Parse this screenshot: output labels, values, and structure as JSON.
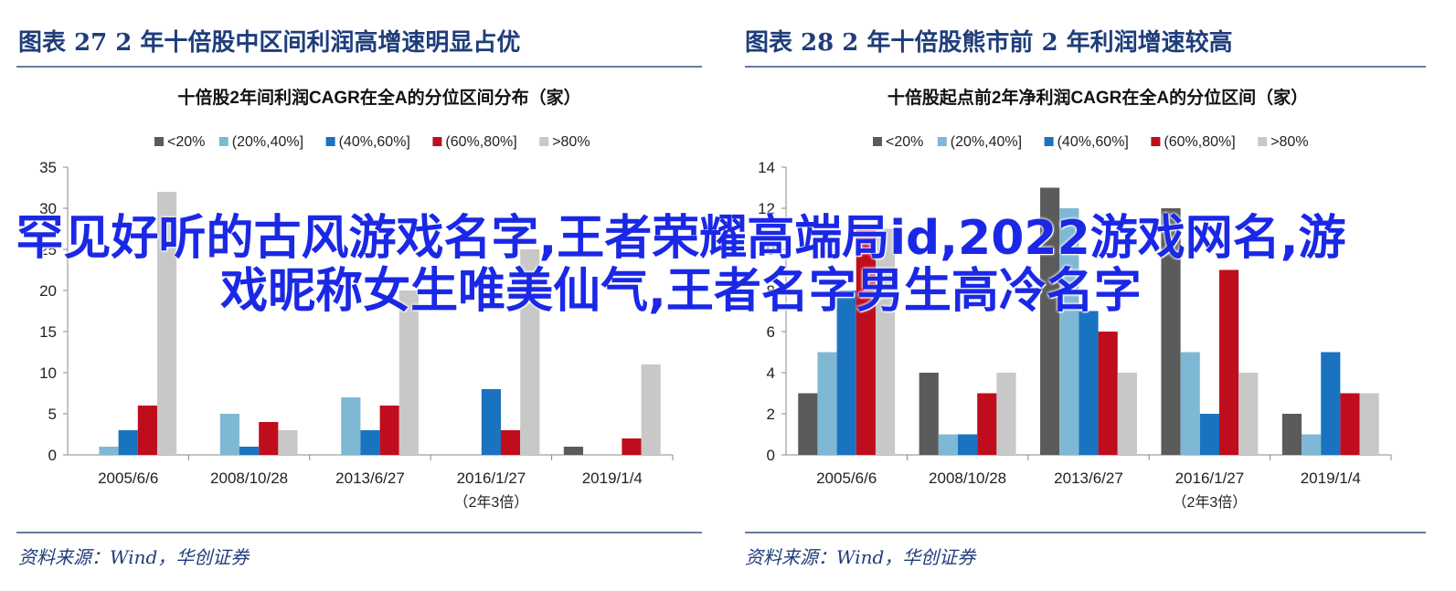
{
  "figures": [
    {
      "figure_title": "图表  27    2 年十倍股中区间利润高增速明显占优",
      "source": "资料来源：Wind，华创证券",
      "chart_data": {
        "type": "bar",
        "title": "十倍股2年间利润CAGR在全A的分位区间分布（家）",
        "xlabel": "",
        "ylabel": "",
        "ylim": [
          0,
          35
        ],
        "yticks": [
          0,
          5,
          10,
          15,
          20,
          25,
          30,
          35
        ],
        "categories": [
          "2005/6/6",
          "2008/10/28",
          "2013/6/27",
          "2016/1/27",
          "2019/1/4"
        ],
        "category_note": {
          "index": 3,
          "text": "（2年3倍）"
        },
        "legend_position": "top",
        "grid": false,
        "series": [
          {
            "name": "<20%",
            "color": "#5b5b5b",
            "values": [
              0,
              0,
              0,
              0,
              1
            ]
          },
          {
            "name": "(20%,40%]",
            "color": "#7fb8d4",
            "values": [
              1,
              5,
              7,
              0,
              0
            ]
          },
          {
            "name": "(40%,60%]",
            "color": "#1a73c0",
            "values": [
              3,
              1,
              3,
              8,
              0
            ]
          },
          {
            "name": "(60%,80%]",
            "color": "#c00d1e",
            "values": [
              6,
              4,
              6,
              3,
              2
            ]
          },
          {
            "name": ">80%",
            "color": "#c8c8c8",
            "values": [
              32,
              3,
              20,
              25,
              11
            ]
          }
        ]
      }
    },
    {
      "figure_title": "图表  28    2 年十倍股熊市前 2 年利润增速较高",
      "source": "资料来源：Wind，华创证券",
      "chart_data": {
        "type": "bar",
        "title": "十倍股起点前2年净利润CAGR在全A的分位区间（家）",
        "xlabel": "",
        "ylabel": "",
        "ylim": [
          0,
          14
        ],
        "yticks": [
          0,
          2,
          4,
          6,
          8,
          10,
          12,
          14
        ],
        "categories": [
          "2005/6/6",
          "2008/10/28",
          "2013/6/27",
          "2016/1/27",
          "2019/1/4"
        ],
        "category_note": {
          "index": 3,
          "text": "（2年3倍）"
        },
        "legend_position": "top",
        "grid": false,
        "series": [
          {
            "name": "<20%",
            "color": "#5b5b5b",
            "values": [
              3,
              4,
              13,
              12,
              2
            ]
          },
          {
            "name": "(20%,40%]",
            "color": "#7fb8d4",
            "values": [
              5,
              1,
              12,
              5,
              1
            ]
          },
          {
            "name": "(40%,60%]",
            "color": "#1a73c0",
            "values": [
              8,
              1,
              7,
              2,
              5
            ]
          },
          {
            "name": "(60%,80%]",
            "color": "#c00d1e",
            "values": [
              11,
              3,
              6,
              9,
              3
            ]
          },
          {
            "name": ">80%",
            "color": "#c8c8c8",
            "values": [
              11,
              4,
              4,
              4,
              3
            ]
          }
        ]
      }
    }
  ],
  "overlay_text": "罕见好听的古风游戏名字,王者荣耀高端局id,2022游戏网名,游戏昵称女生唯美仙气,王者名字男生高冷名字"
}
